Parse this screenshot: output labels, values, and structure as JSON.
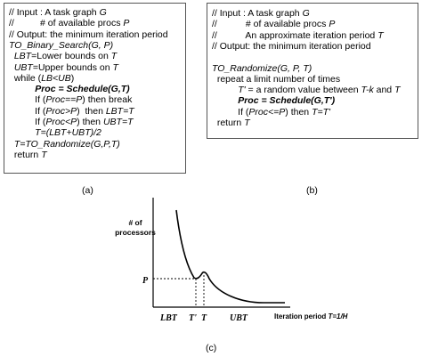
{
  "panel_a": {
    "caption": "(a)",
    "lines": [
      [
        {
          "t": "// Input : A task graph "
        },
        {
          "t": "G",
          "s": "it"
        }
      ],
      [
        {
          "t": "//          # of available procs "
        },
        {
          "t": "P",
          "s": "it"
        }
      ],
      [
        {
          "t": "// Output: the minimum iteration period"
        }
      ],
      [
        {
          "t": "TO_Binary_Search(G, P)",
          "s": "it"
        }
      ],
      [
        {
          "t": "  "
        },
        {
          "t": "LBT",
          "s": "it"
        },
        {
          "t": "=Lower bounds on "
        },
        {
          "t": "T",
          "s": "it"
        }
      ],
      [
        {
          "t": "  "
        },
        {
          "t": "UBT",
          "s": "it"
        },
        {
          "t": "=Upper bounds on "
        },
        {
          "t": "T",
          "s": "it"
        }
      ],
      [
        {
          "t": "  while ("
        },
        {
          "t": "LB<UB",
          "s": "it"
        },
        {
          "t": ")"
        }
      ],
      [
        {
          "t": "          "
        },
        {
          "t": "Proc = Schedule(G,T)",
          "s": "b"
        }
      ],
      [
        {
          "t": "          If ("
        },
        {
          "t": "Proc==P",
          "s": "it"
        },
        {
          "t": ") then break"
        }
      ],
      [
        {
          "t": "          If ("
        },
        {
          "t": "Proc>P",
          "s": "it"
        },
        {
          "t": ")  then "
        },
        {
          "t": "LBT=T",
          "s": "it"
        }
      ],
      [
        {
          "t": "          If ("
        },
        {
          "t": "Proc<P",
          "s": "it"
        },
        {
          "t": ") then "
        },
        {
          "t": "UBT=T",
          "s": "it"
        }
      ],
      [
        {
          "t": "          T=(LBT+UBT)/2",
          "s": "it"
        }
      ],
      [
        {
          "t": "  T=TO_Randomize(G,P,T)",
          "s": "it"
        }
      ],
      [
        {
          "t": "  return "
        },
        {
          "t": "T",
          "s": "it"
        }
      ]
    ]
  },
  "panel_b": {
    "caption": "(b)",
    "lines": [
      [
        {
          "t": "// Input : A task graph "
        },
        {
          "t": "G",
          "s": "it"
        }
      ],
      [
        {
          "t": "//           # of available procs "
        },
        {
          "t": "P",
          "s": "it"
        }
      ],
      [
        {
          "t": "//           An approximate iteration period "
        },
        {
          "t": "T",
          "s": "it"
        }
      ],
      [
        {
          "t": "// Output: the minimum iteration period"
        }
      ],
      [
        {
          "t": ""
        }
      ],
      [
        {
          "t": "TO_Randomize(G, P, T)",
          "s": "it"
        }
      ],
      [
        {
          "t": "  repeat a limit number of times"
        }
      ],
      [
        {
          "t": "          "
        },
        {
          "t": "T'",
          "s": "it"
        },
        {
          "t": " = a random value between "
        },
        {
          "t": "T-k",
          "s": "it"
        },
        {
          "t": " and "
        },
        {
          "t": "T",
          "s": "it"
        }
      ],
      [
        {
          "t": "          "
        },
        {
          "t": "Proc = Schedule(G,T')",
          "s": "b"
        }
      ],
      [
        {
          "t": "          If ("
        },
        {
          "t": "Proc<=P",
          "s": "it"
        },
        {
          "t": ") then "
        },
        {
          "t": "T=T'",
          "s": "it"
        }
      ],
      [
        {
          "t": "  return "
        },
        {
          "t": "T",
          "s": "it"
        }
      ]
    ]
  },
  "panel_c": {
    "caption": "(c)",
    "y_label_line1": "# of",
    "y_label_line2": "processors",
    "p_label": "P",
    "x_ticks": [
      "LBT",
      "T'",
      "T",
      "UBT"
    ],
    "x_label_prefix": "Iteration period ",
    "x_label_formula": "T=1/H"
  }
}
